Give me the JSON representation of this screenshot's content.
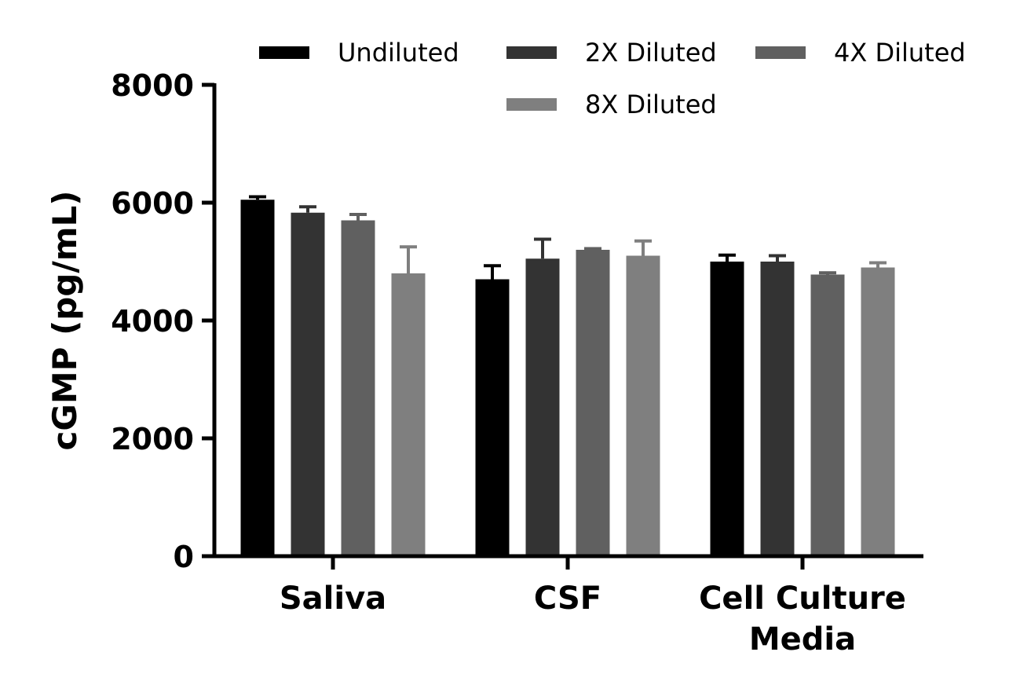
{
  "chart_data": {
    "type": "bar",
    "title": "",
    "xlabel": "",
    "ylabel": "cGMP (pg/mL)",
    "ylim": [
      0,
      8000
    ],
    "yticks": [
      "0",
      "2000",
      "4000",
      "6000",
      "8000"
    ],
    "ytick_values": [
      0,
      2000,
      4000,
      6000,
      8000
    ],
    "categories": [
      [
        "Saliva"
      ],
      [
        "CSF"
      ],
      [
        "Cell Culture",
        "Media"
      ]
    ],
    "series": [
      {
        "name": "Undiluted",
        "color": "#000000",
        "values": [
          6050,
          4700,
          5000
        ],
        "errors": [
          50,
          230,
          110
        ]
      },
      {
        "name": "2X Diluted",
        "color": "#333333",
        "values": [
          5830,
          5050,
          5000
        ],
        "errors": [
          100,
          330,
          100
        ]
      },
      {
        "name": "4X Diluted",
        "color": "#606060",
        "values": [
          5700,
          5200,
          4780
        ],
        "errors": [
          100,
          20,
          30
        ]
      },
      {
        "name": "8X Diluted",
        "color": "#7f7f7f",
        "values": [
          4800,
          5100,
          4900
        ],
        "errors": [
          450,
          250,
          80
        ]
      }
    ],
    "legend_position": "top",
    "grid": false
  }
}
